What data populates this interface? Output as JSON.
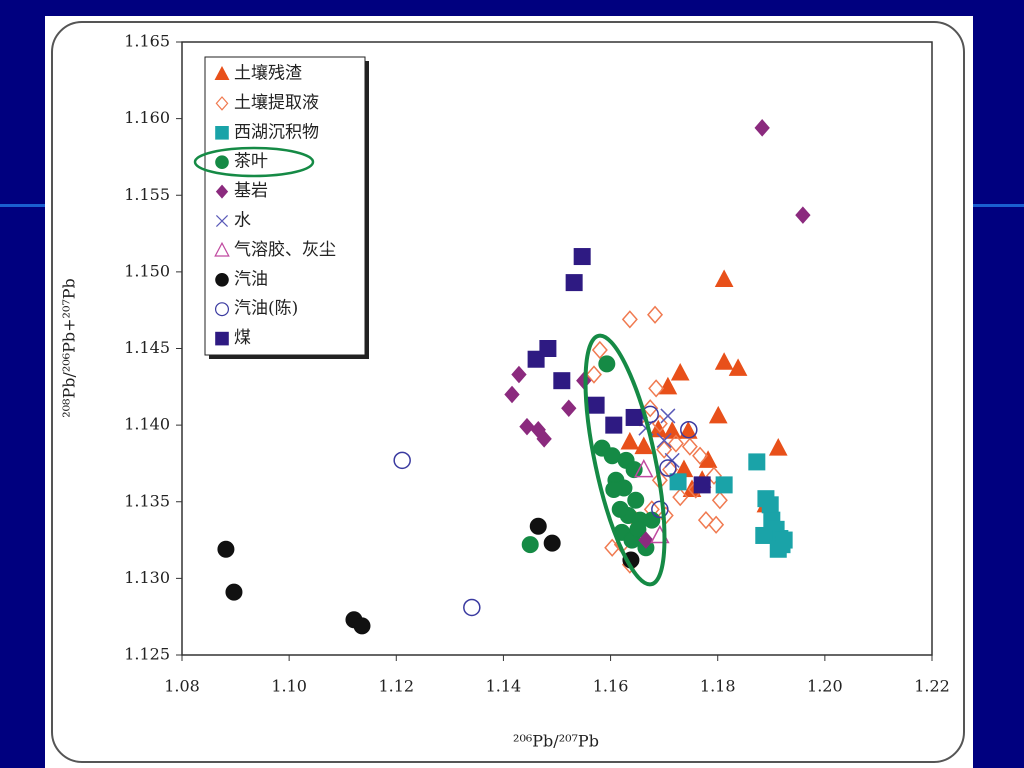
{
  "chart_data": {
    "type": "scatter",
    "x_label": "²⁰⁶Pb/²⁰⁷Pb",
    "y_label": "²⁰⁸Pb/²⁰⁶Pb+²⁰⁷Pb",
    "xlim": [
      1.08,
      1.22
    ],
    "xticks": [
      1.08,
      {
        "value": 1.1,
        "label": "1.10"
      },
      1.12,
      1.14,
      1.16,
      1.18,
      {
        "value": 1.2,
        "label": "1.20"
      },
      1.22
    ],
    "ylim": [
      1.125,
      1.165
    ],
    "yticks": [
      1.125,
      {
        "value": 1.13,
        "label": "1.130"
      },
      1.135,
      {
        "value": 1.14,
        "label": "1.140"
      },
      1.145,
      {
        "value": 1.15,
        "label": "1.150"
      },
      1.155,
      {
        "value": 1.16,
        "label": "1.160"
      },
      1.165
    ],
    "legend": "upper left",
    "series": [
      {
        "name": "土壤残渣",
        "color": "#e8501a",
        "marker": "triangle",
        "filled": true,
        "x": [
          1.1812,
          1.1812,
          1.1838,
          1.1801,
          1.173,
          1.1707,
          1.1689,
          1.1715,
          1.1745,
          1.1636,
          1.1662,
          1.1782,
          1.1737,
          1.1752,
          1.1771,
          1.1913,
          1.189
        ],
        "values": [
          1.1495,
          1.1441,
          1.1437,
          1.1406,
          1.1434,
          1.1425,
          1.1397,
          1.1396,
          1.1396,
          1.1389,
          1.1386,
          1.1377,
          1.1371,
          1.1358,
          1.1364,
          1.1385,
          1.1348
        ]
      },
      {
        "name": "土壤提取液",
        "color": "#f07a50",
        "marker": "diamond",
        "filled": false,
        "x": [
          1.1636,
          1.1683,
          1.1569,
          1.158,
          1.1685,
          1.1674,
          1.1655,
          1.1692,
          1.17,
          1.1722,
          1.1748,
          1.1767,
          1.1793,
          1.1804,
          1.1797,
          1.1778,
          1.1759,
          1.173,
          1.1703,
          1.1677,
          1.1647,
          1.1621,
          1.1636,
          1.1603,
          1.1692,
          1.1711
        ],
        "values": [
          1.1469,
          1.1472,
          1.1433,
          1.1449,
          1.1424,
          1.1411,
          1.1405,
          1.1401,
          1.1384,
          1.1388,
          1.1386,
          1.138,
          1.1367,
          1.1351,
          1.1335,
          1.1338,
          1.1358,
          1.1353,
          1.1341,
          1.1345,
          1.1338,
          1.1322,
          1.1309,
          1.132,
          1.1364,
          1.1371
        ]
      },
      {
        "name": "西湖沉积物",
        "color": "#1aa3a8",
        "marker": "square",
        "filled": true,
        "x": [
          1.1873,
          1.1812,
          1.1726,
          1.189,
          1.1898,
          1.1901,
          1.1909,
          1.1916,
          1.192,
          1.1886,
          1.1913,
          1.1924
        ],
        "values": [
          1.1376,
          1.1361,
          1.1363,
          1.1352,
          1.1348,
          1.1338,
          1.1332,
          1.1326,
          1.1322,
          1.1328,
          1.1319,
          1.1325
        ]
      },
      {
        "name": "茶叶",
        "color": "#158a45",
        "marker": "circle",
        "filled": true,
        "x": [
          1.1593,
          1.1584,
          1.1603,
          1.1629,
          1.1644,
          1.161,
          1.1625,
          1.1647,
          1.1606,
          1.1633,
          1.1655,
          1.1621,
          1.164,
          1.1666,
          1.1618,
          1.1651,
          1.1677,
          1.145
        ],
        "values": [
          1.144,
          1.1385,
          1.138,
          1.1377,
          1.1371,
          1.1364,
          1.1359,
          1.1351,
          1.1358,
          1.1341,
          1.1338,
          1.133,
          1.1325,
          1.132,
          1.1345,
          1.1332,
          1.1338,
          1.1322
        ]
      },
      {
        "name": "基岩",
        "color": "#8b2a7e",
        "marker": "diamond",
        "filled": true,
        "x": [
          1.1883,
          1.1959,
          1.1429,
          1.1416,
          1.1444,
          1.1465,
          1.1476,
          1.1522,
          1.155,
          1.1666
        ],
        "values": [
          1.1594,
          1.1537,
          1.1433,
          1.142,
          1.1399,
          1.1397,
          1.1391,
          1.1411,
          1.1429,
          1.1325
        ]
      },
      {
        "name": "水",
        "color": "#5a5ab8",
        "marker": "x",
        "filled": false,
        "x": [
          1.1707,
          1.17,
          1.1715,
          1.1666
        ],
        "values": [
          1.1406,
          1.139,
          1.1377,
          1.1398
        ]
      },
      {
        "name": "气溶胶、灰尘",
        "color": "#c04aa0",
        "marker": "triangle",
        "filled": false,
        "x": [
          1.1692,
          1.1662
        ],
        "values": [
          1.1328,
          1.1371
        ]
      },
      {
        "name": "汽油",
        "color": "#111111",
        "marker": "circle",
        "filled": true,
        "x": [
          1.0882,
          1.0897,
          1.1121,
          1.1136,
          1.1465,
          1.1491,
          1.1638
        ],
        "values": [
          1.1319,
          1.1291,
          1.1273,
          1.1269,
          1.1334,
          1.1323,
          1.1312
        ]
      },
      {
        "name": "汽油(陈)",
        "color": "#3a3aa0",
        "marker": "circle",
        "filled": false,
        "x": [
          1.1211,
          1.1341,
          1.1746,
          1.1674,
          1.1692,
          1.1707
        ],
        "values": [
          1.1377,
          1.1281,
          1.1397,
          1.1407,
          1.1345,
          1.1372
        ]
      },
      {
        "name": "煤",
        "color": "#2e1a82",
        "marker": "square",
        "filled": true,
        "x": [
          1.1547,
          1.1532,
          1.1483,
          1.1461,
          1.1509,
          1.1573,
          1.1606,
          1.1644,
          1.1771
        ],
        "values": [
          1.151,
          1.1493,
          1.145,
          1.1443,
          1.1429,
          1.1413,
          1.14,
          1.1405,
          1.1361
        ]
      }
    ]
  }
}
